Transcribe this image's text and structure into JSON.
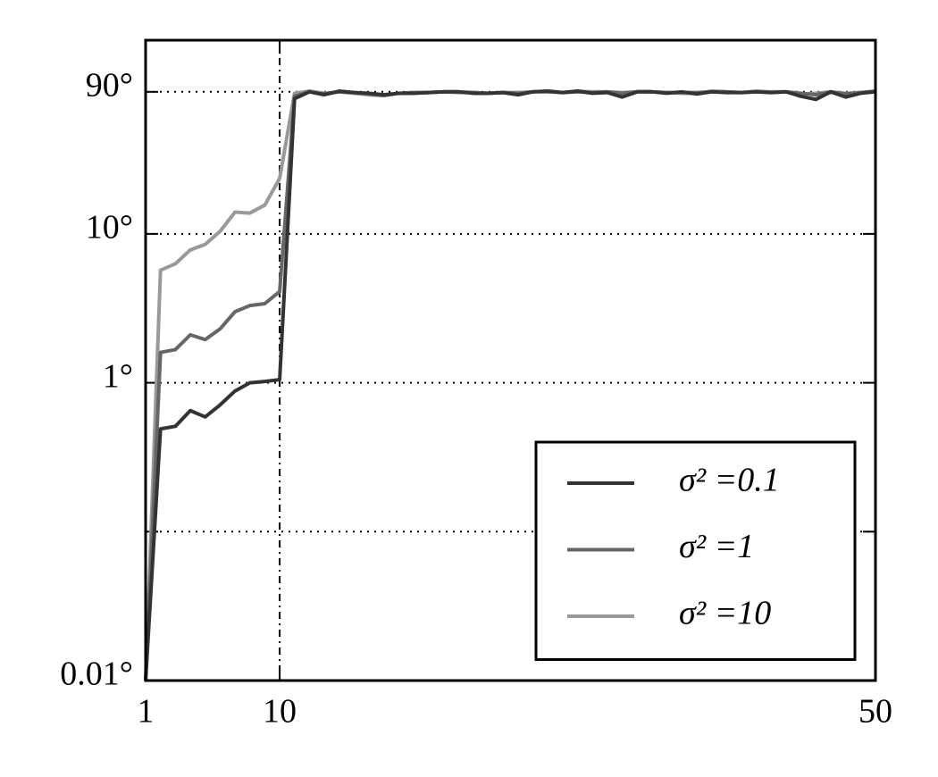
{
  "chart_data": {
    "type": "line",
    "x": [
      1,
      2,
      3,
      4,
      5,
      6,
      7,
      8,
      9,
      10,
      11,
      12,
      13,
      14,
      15,
      16,
      17,
      18,
      19,
      20,
      21,
      22,
      23,
      24,
      25,
      26,
      27,
      28,
      29,
      30,
      31,
      32,
      33,
      34,
      35,
      36,
      37,
      38,
      39,
      40,
      41,
      42,
      43,
      44,
      45,
      46,
      47,
      48,
      49,
      50
    ],
    "series": [
      {
        "name": "σ² =0.1",
        "color": "#333333",
        "values": [
          0.01,
          0.49,
          0.51,
          0.65,
          0.59,
          0.71,
          0.88,
          1.0,
          1.02,
          1.05,
          81,
          90,
          86,
          91,
          89,
          88,
          86,
          88,
          88,
          89,
          90,
          90,
          88,
          88,
          89,
          86,
          90,
          91,
          89,
          91,
          88,
          89,
          83,
          90,
          90,
          88,
          90,
          87,
          90,
          89,
          89,
          90,
          89,
          90,
          84,
          80,
          90,
          83,
          88,
          90
        ]
      },
      {
        "name": "σ² =1",
        "color": "#666666",
        "values": [
          0.01,
          1.6,
          1.67,
          2.1,
          1.95,
          2.3,
          3.0,
          3.3,
          3.4,
          4.1,
          84,
          90,
          87,
          90,
          89,
          87,
          85,
          88,
          89,
          89,
          90,
          90,
          89,
          88,
          89,
          88,
          90,
          90,
          89,
          90,
          89,
          90,
          88,
          90,
          90,
          89,
          89,
          89,
          90,
          90,
          89,
          90,
          89,
          90,
          88,
          86,
          90,
          87,
          89,
          91
        ]
      },
      {
        "name": "σ² =10",
        "color": "#999999",
        "values": [
          0.01,
          5.7,
          6.3,
          7.8,
          8.5,
          10.4,
          14,
          13.8,
          15.6,
          23.6,
          88,
          91,
          88,
          90,
          88,
          86,
          85,
          88,
          88,
          89,
          90,
          89,
          89,
          88,
          89,
          89,
          90,
          91,
          89,
          91,
          90,
          90,
          89,
          90,
          90,
          89,
          88,
          88,
          91,
          90,
          89,
          91,
          90,
          90,
          87,
          88,
          90,
          88,
          89,
          90
        ]
      }
    ],
    "xlim": [
      1,
      50
    ],
    "xticks": [
      1,
      10,
      50
    ],
    "ylim": [
      0.01,
      200
    ],
    "ylog": true,
    "yticks": [
      {
        "value": 0.01,
        "label": "0.01°"
      },
      {
        "value": 0.1,
        "label": null
      },
      {
        "value": 1,
        "label": "1°"
      },
      {
        "value": 10,
        "label": "10°"
      },
      {
        "value": 90,
        "label": "90°"
      }
    ],
    "xgrid": [
      10
    ],
    "grid": true,
    "legend": "lower right"
  }
}
